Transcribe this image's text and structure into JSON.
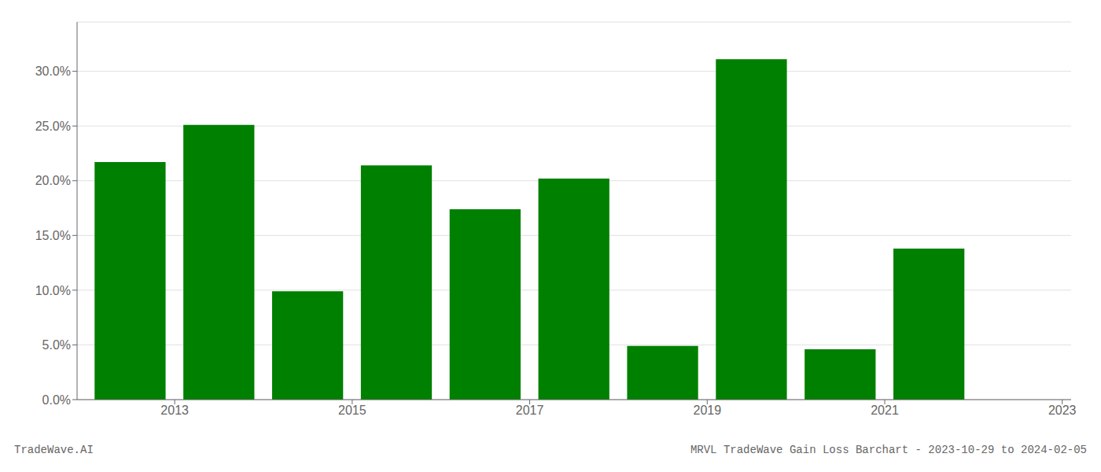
{
  "chart_data": {
    "type": "bar",
    "x": [
      2013,
      2014,
      2015,
      2016,
      2017,
      2018,
      2019,
      2020,
      2021,
      2022
    ],
    "values": [
      0.217,
      0.251,
      0.099,
      0.214,
      0.174,
      0.202,
      0.049,
      0.311,
      0.046,
      0.138
    ],
    "color": "#008000",
    "xlim": [
      2012.4,
      2023.6
    ],
    "xticks": [
      {
        "value": 2013.5,
        "label": "2013"
      },
      {
        "value": 2015.5,
        "label": "2015"
      },
      {
        "value": 2017.5,
        "label": "2017"
      },
      {
        "value": 2019.5,
        "label": "2019"
      },
      {
        "value": 2021.5,
        "label": "2021"
      },
      {
        "value": 2023.5,
        "label": "2023"
      }
    ],
    "ylim": [
      0.0,
      0.345
    ],
    "yticks": [
      {
        "value": 0.0,
        "label": "0.0%"
      },
      {
        "value": 0.05,
        "label": "5.0%"
      },
      {
        "value": 0.1,
        "label": "10.0%"
      },
      {
        "value": 0.15,
        "label": "15.0%"
      },
      {
        "value": 0.2,
        "label": "20.0%"
      },
      {
        "value": 0.25,
        "label": "25.0%"
      },
      {
        "value": 0.3,
        "label": "30.0%"
      }
    ],
    "grid": true,
    "annotations": [
      "TradeWave.AI",
      "MRVL TradeWave Gain Loss Barchart - 2023-10-29 to 2024-02-05"
    ]
  }
}
